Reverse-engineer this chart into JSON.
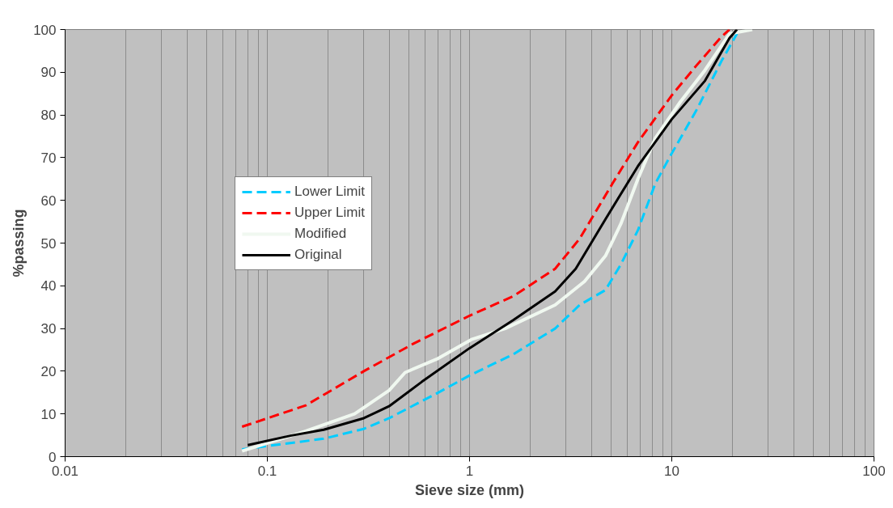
{
  "chart_data": {
    "type": "line",
    "xlabel": "Sieve size (mm)",
    "ylabel": "%passing",
    "log": "x",
    "xlim": [
      0.01,
      100
    ],
    "xticks": [
      0.01,
      0.1,
      1,
      10,
      100
    ],
    "ylim": [
      0,
      100
    ],
    "yticks": [
      0,
      10,
      20,
      30,
      40,
      50,
      60,
      70,
      80,
      90,
      100
    ],
    "grid": "x",
    "legend": "left",
    "marker": "none",
    "series": [
      {
        "name": "Lower Limit",
        "color": "#00ccff",
        "line_style": "dashed",
        "x": [
          0.075,
          0.19,
          0.3,
          0.4,
          0.7,
          1,
          1.65,
          2.65,
          3.5,
          4.7,
          5.6,
          6.8,
          8.3,
          10,
          13.2,
          17.6,
          21
        ],
        "values": [
          1.7,
          4.2,
          6.5,
          9,
          15,
          19,
          24,
          30,
          35.5,
          39,
          45,
          53,
          64,
          71,
          81,
          92.6,
          99
        ]
      },
      {
        "name": "Upper Limit",
        "color": "#ff0000",
        "line_style": "dashed",
        "x": [
          0.075,
          0.155,
          0.3,
          0.53,
          1,
          1.65,
          2.65,
          3.5,
          5.1,
          6.8,
          10,
          13.2,
          17.6,
          19.3
        ],
        "values": [
          7,
          12,
          20,
          26.5,
          33,
          37.6,
          44,
          51,
          64,
          73.6,
          84.6,
          91.5,
          98.3,
          100
        ]
      },
      {
        "name": "Modified",
        "color": "#f0f8f0",
        "line_style": "solid",
        "x": [
          0.075,
          0.155,
          0.27,
          0.4,
          0.48,
          0.7,
          1.03,
          1.5,
          2.65,
          3.7,
          4.7,
          5.6,
          6.8,
          8.3,
          11,
          14.6,
          19.3,
          25
        ],
        "values": [
          1.3,
          6,
          10,
          15.5,
          19.7,
          23,
          27.5,
          30,
          35.5,
          41,
          47,
          54.5,
          65,
          74.6,
          83,
          90.5,
          99,
          100
        ]
      },
      {
        "name": "Original",
        "color": "#000000",
        "line_style": "solid",
        "x": [
          0.08,
          0.13,
          0.19,
          0.3,
          0.4,
          0.58,
          1,
          1.65,
          2.65,
          3.35,
          4.7,
          6.8,
          10,
          14.6,
          19.3,
          21
        ],
        "values": [
          2.7,
          4.9,
          6.3,
          9,
          11.8,
          17.5,
          25.4,
          32,
          38.7,
          44,
          55.6,
          68,
          79,
          88,
          98,
          100
        ]
      }
    ]
  }
}
